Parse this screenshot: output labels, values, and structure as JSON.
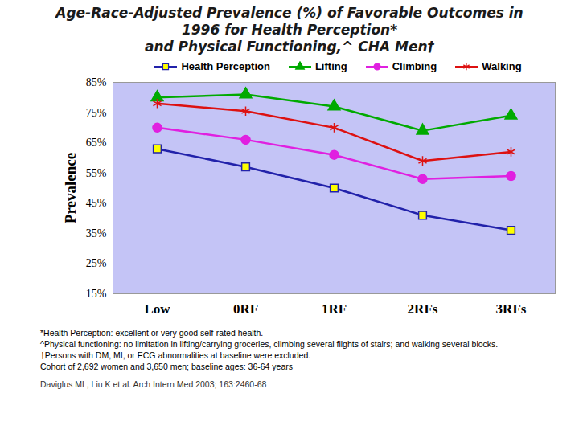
{
  "chart_data": {
    "type": "line",
    "title": "Age-Race-Adjusted Prevalence (%) of Favorable Outcomes in\n1996 for Health Perception*\nand Physical Functioning,^ CHA Men†",
    "y_label": "Prevalence",
    "categories": [
      "Low",
      "0RF",
      "1RF",
      "2RFs",
      "3RFs"
    ],
    "series": [
      {
        "name": "Health Perception",
        "color": "#2222aa",
        "marker": "square",
        "values": [
          63,
          57,
          50,
          41,
          36
        ]
      },
      {
        "name": "Lifting",
        "color": "#00aa00",
        "marker": "triangle",
        "values": [
          80,
          81,
          77,
          69,
          74
        ]
      },
      {
        "name": "Climbing",
        "color": "#e020e0",
        "marker": "circle",
        "values": [
          70,
          66,
          61,
          53,
          54
        ]
      },
      {
        "name": "Walking",
        "color": "#dd1111",
        "marker": "asterisk",
        "values": [
          78,
          75.5,
          70,
          59,
          62
        ]
      }
    ],
    "ylim": [
      15,
      85
    ],
    "yticks": [
      {
        "value": 15,
        "label": "15%"
      },
      {
        "value": 25,
        "label": "25%"
      },
      {
        "value": 35,
        "label": "35%"
      },
      {
        "value": 45,
        "label": "45%"
      },
      {
        "value": 55,
        "label": "55%"
      },
      {
        "value": 65,
        "label": "65%"
      },
      {
        "value": 75,
        "label": "75%"
      },
      {
        "value": 85,
        "label": "85%"
      }
    ],
    "grid": false,
    "legend": "top",
    "annotations": [
      "*Health Perception: excellent or very good self-rated health.",
      "^Physical functioning: no limitation in lifting/carrying groceries, climbing several flights of stairs; and walking several blocks.",
      "†Persons with DM, MI, or ECG abnormalities at baseline were excluded.",
      "Cohort of 2,692 women and 3,650 men; baseline ages: 36-64 years",
      "Daviglus ML, Liu K et al. Arch Intern Med 2003; 163:2460-68"
    ]
  }
}
